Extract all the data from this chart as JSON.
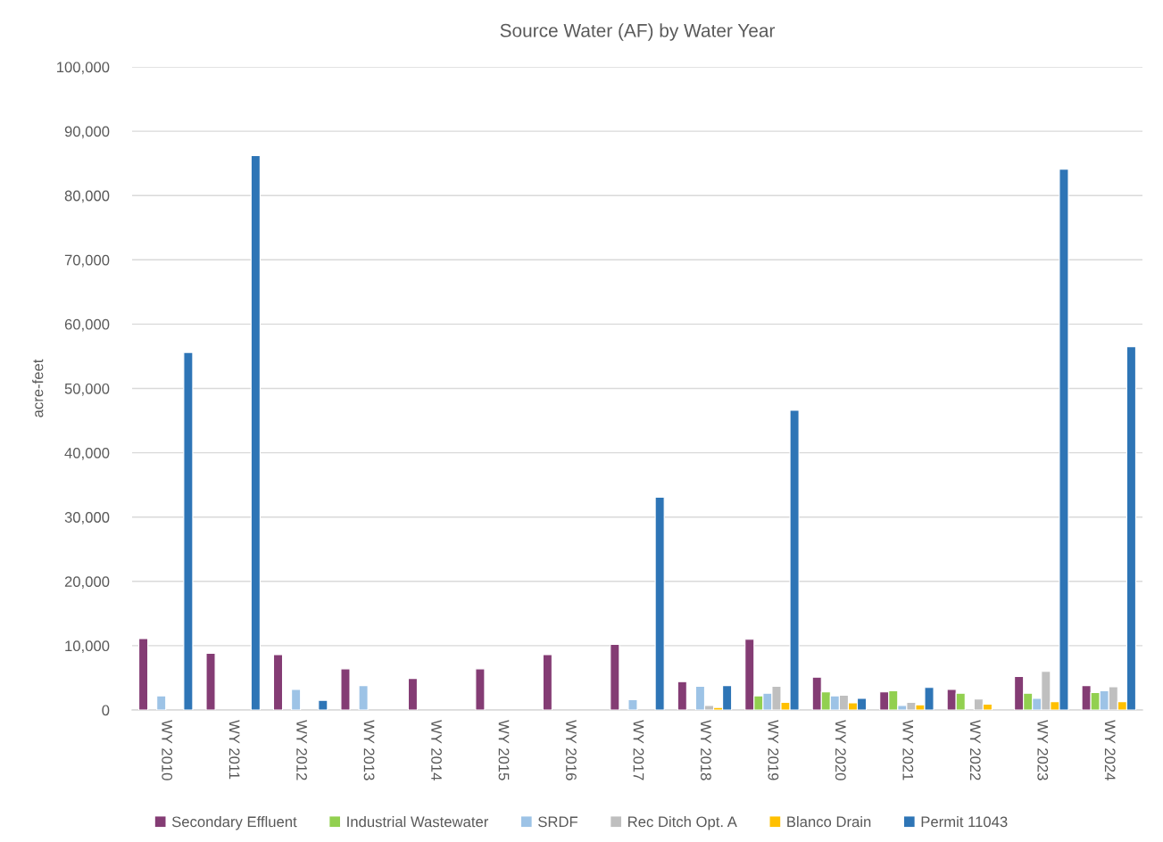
{
  "chart_data": {
    "type": "bar",
    "title": "Source Water (AF) by Water Year",
    "ylabel": "acre-feet",
    "categories": [
      "WY 2010",
      "WY 2011",
      "WY 2012",
      "WY 2013",
      "WY 2014",
      "WY 2015",
      "WY 2016",
      "WY 2017",
      "WY 2018",
      "WY 2019",
      "WY 2020",
      "WY 2021",
      "WY 2022",
      "WY 2023",
      "WY 2024"
    ],
    "series": [
      {
        "name": "Secondary Effluent",
        "color": "#843c74",
        "values": [
          11100,
          8800,
          8600,
          6400,
          4900,
          6400,
          8600,
          10200,
          4400,
          11000,
          5100,
          2800,
          3200,
          5200,
          3800
        ]
      },
      {
        "name": "Industrial Wastewater",
        "color": "#92d050",
        "values": [
          null,
          null,
          null,
          null,
          null,
          null,
          null,
          null,
          null,
          2200,
          2800,
          3000,
          2600,
          2600,
          2700
        ]
      },
      {
        "name": "SRDF",
        "color": "#9dc3e6",
        "values": [
          2200,
          null,
          3200,
          3800,
          null,
          null,
          null,
          1600,
          3700,
          2600,
          2200,
          700,
          null,
          1800,
          3000
        ]
      },
      {
        "name": "Rec Ditch Opt. A",
        "color": "#bfbfbf",
        "values": [
          null,
          null,
          null,
          null,
          null,
          null,
          null,
          null,
          700,
          3700,
          2300,
          1200,
          1700,
          6000,
          3600
        ]
      },
      {
        "name": "Blanco Drain",
        "color": "#ffc000",
        "values": [
          null,
          null,
          null,
          null,
          null,
          null,
          null,
          null,
          400,
          1200,
          1100,
          800,
          900,
          1300,
          1300
        ]
      },
      {
        "name": "Permit 11043",
        "color": "#2e75b6",
        "values": [
          55600,
          86200,
          1500,
          null,
          null,
          null,
          null,
          33100,
          3800,
          46600,
          1800,
          3500,
          null,
          84100,
          56500
        ]
      }
    ],
    "ylim": [
      0,
      100000
    ],
    "yticks": [
      0,
      {
        "value": 10000,
        "label": "10,000"
      },
      {
        "value": 20000,
        "label": "20,000"
      },
      {
        "value": 30000,
        "label": "30,000"
      },
      {
        "value": 40000,
        "label": "40,000"
      },
      {
        "value": 50000,
        "label": "50,000"
      },
      {
        "value": 60000,
        "label": "60,000"
      },
      {
        "value": 70000,
        "label": "70,000"
      },
      {
        "value": 80000,
        "label": "80,000"
      },
      {
        "value": 90000,
        "label": "90,000"
      },
      {
        "value": 100000,
        "label": "100,000"
      }
    ],
    "grid": "y",
    "legend": "bottom"
  }
}
